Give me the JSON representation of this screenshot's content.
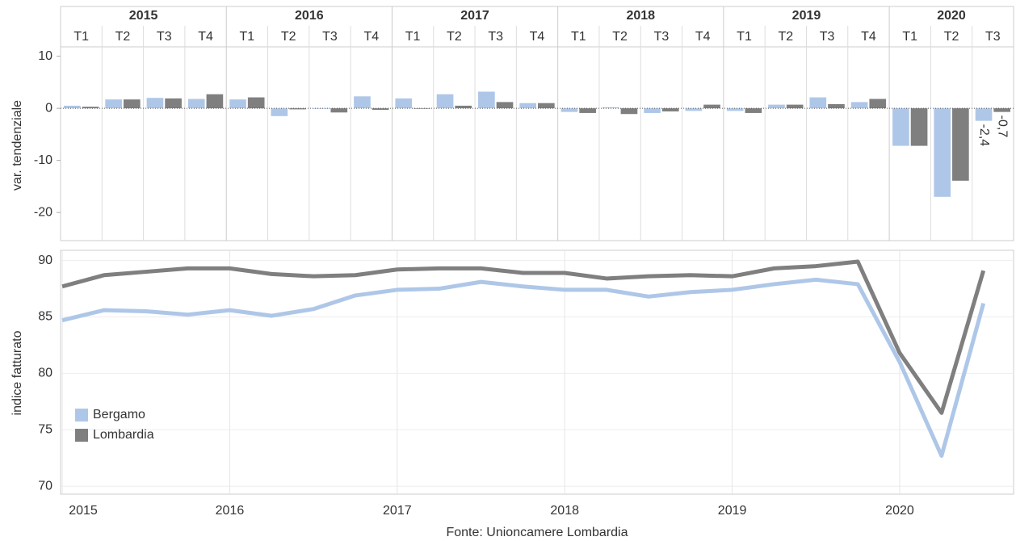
{
  "chart_data": [
    {
      "type": "bar",
      "y_label": "var. tendenziale",
      "groups": [
        {
          "name": "2015",
          "categories": [
            "T1",
            "T2",
            "T3",
            "T4"
          ]
        },
        {
          "name": "2016",
          "categories": [
            "T1",
            "T2",
            "T3",
            "T4"
          ]
        },
        {
          "name": "2017",
          "categories": [
            "T1",
            "T2",
            "T3",
            "T4"
          ]
        },
        {
          "name": "2018",
          "categories": [
            "T1",
            "T2",
            "T3",
            "T4"
          ]
        },
        {
          "name": "2019",
          "categories": [
            "T1",
            "T2",
            "T3",
            "T4"
          ]
        },
        {
          "name": "2020",
          "categories": [
            "T1",
            "T2",
            "T3"
          ]
        }
      ],
      "series": [
        {
          "name": "Bergamo",
          "color": "#aec7e8",
          "values": [
            0.5,
            1.7,
            2.0,
            1.8,
            1.7,
            -1.5,
            -0.1,
            2.3,
            1.9,
            2.7,
            3.2,
            1.0,
            -0.7,
            0.2,
            -0.9,
            -0.5,
            -0.5,
            0.7,
            2.1,
            1.2,
            -7.2,
            -17.0,
            -2.4
          ],
          "value_labels": [
            null,
            null,
            null,
            null,
            null,
            null,
            null,
            null,
            null,
            null,
            null,
            null,
            null,
            null,
            null,
            null,
            null,
            null,
            null,
            null,
            null,
            null,
            "-2,4"
          ]
        },
        {
          "name": "Lombardia",
          "color": "#7f7f7f",
          "values": [
            0.3,
            1.7,
            1.9,
            2.7,
            2.1,
            -0.2,
            -0.8,
            -0.3,
            -0.1,
            0.5,
            1.2,
            1.0,
            -0.9,
            -1.1,
            -0.6,
            0.7,
            -0.9,
            0.7,
            0.8,
            1.8,
            -7.2,
            -13.9,
            -0.7
          ],
          "value_labels": [
            null,
            null,
            null,
            null,
            null,
            null,
            null,
            null,
            null,
            null,
            null,
            null,
            null,
            null,
            null,
            null,
            null,
            null,
            null,
            null,
            null,
            null,
            "-0,7"
          ]
        }
      ],
      "ylim": [
        -25.4,
        11.8
      ],
      "yticks": [
        10,
        0,
        -10,
        -20
      ]
    },
    {
      "type": "line",
      "y_label": "indice fatturato",
      "x": [
        2015,
        2015.25,
        2015.5,
        2015.75,
        2016,
        2016.25,
        2016.5,
        2016.75,
        2017,
        2017.25,
        2017.5,
        2017.75,
        2018,
        2018.25,
        2018.5,
        2018.75,
        2019,
        2019.25,
        2019.5,
        2019.75,
        2020,
        2020.25,
        2020.5
      ],
      "series": [
        {
          "name": "Bergamo",
          "color": "#aec7e8",
          "values": [
            84.7,
            85.6,
            85.5,
            85.2,
            85.6,
            85.1,
            85.7,
            86.9,
            87.4,
            87.5,
            88.1,
            87.7,
            87.4,
            87.4,
            86.8,
            87.2,
            87.4,
            87.9,
            88.3,
            87.9,
            81.0,
            72.7,
            86.2
          ]
        },
        {
          "name": "Lombardia",
          "color": "#7f7f7f",
          "values": [
            87.7,
            88.7,
            89.0,
            89.3,
            89.3,
            88.8,
            88.6,
            88.7,
            89.2,
            89.3,
            89.3,
            88.9,
            88.9,
            88.4,
            88.6,
            88.7,
            88.6,
            89.3,
            89.5,
            89.9,
            81.8,
            76.5,
            89.1
          ]
        }
      ],
      "xlim": [
        2014.99,
        2020.68
      ],
      "xticks": [
        2015,
        2016,
        2017,
        2018,
        2019,
        2020
      ],
      "ylim": [
        69.3,
        90.9
      ],
      "yticks": [
        90,
        85,
        80,
        75,
        70
      ],
      "grid": true,
      "legend": "lower left"
    }
  ],
  "source": "Fonte: Unioncamere Lombardia"
}
